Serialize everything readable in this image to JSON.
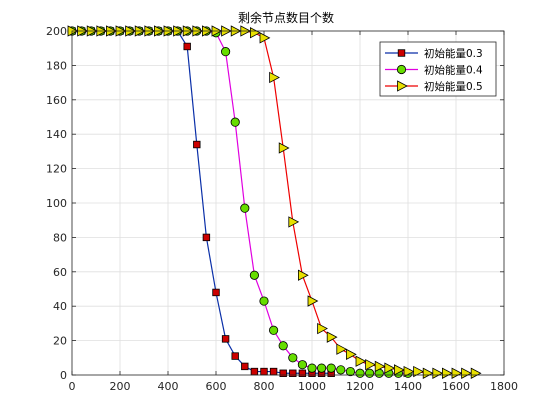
{
  "chart_data": {
    "type": "line",
    "title": "剩余节点数目个数",
    "xlabel": "",
    "ylabel": "",
    "xlim": [
      0,
      1800
    ],
    "ylim": [
      0,
      200
    ],
    "xticks": [
      0,
      200,
      400,
      600,
      800,
      1000,
      1200,
      1400,
      1600,
      1800
    ],
    "yticks": [
      0,
      20,
      40,
      60,
      80,
      100,
      120,
      140,
      160,
      180,
      200
    ],
    "grid": true,
    "legend_position": "top-right",
    "series": [
      {
        "name": "初始能量0.3",
        "color": "#0a2fa8",
        "marker": "square",
        "marker_color": "#cc0000",
        "x": [
          0,
          40,
          80,
          120,
          160,
          200,
          240,
          280,
          320,
          360,
          400,
          440,
          480,
          520,
          560,
          600,
          640,
          680,
          720,
          760,
          800,
          840,
          880,
          920,
          960,
          1000,
          1040,
          1080
        ],
        "y": [
          200,
          200,
          200,
          200,
          200,
          200,
          200,
          200,
          200,
          200,
          200,
          200,
          191,
          134,
          80,
          48,
          21,
          11,
          5,
          2,
          2,
          2,
          1,
          1,
          1,
          1,
          1,
          1
        ]
      },
      {
        "name": "初始能量0.4",
        "color": "#e000e0",
        "marker": "circle",
        "marker_color": "#66dd00",
        "x": [
          0,
          40,
          80,
          120,
          160,
          200,
          240,
          280,
          320,
          360,
          400,
          440,
          480,
          520,
          560,
          600,
          640,
          680,
          720,
          760,
          800,
          840,
          880,
          920,
          960,
          1000,
          1040,
          1080,
          1120,
          1160,
          1200,
          1240,
          1280,
          1320,
          1360,
          1400
        ],
        "y": [
          200,
          200,
          200,
          200,
          200,
          200,
          200,
          200,
          200,
          200,
          200,
          200,
          200,
          200,
          200,
          199,
          188,
          147,
          97,
          58,
          43,
          26,
          17,
          10,
          6,
          4,
          4,
          4,
          3,
          2,
          1,
          1,
          1,
          1,
          1,
          1
        ]
      },
      {
        "name": "初始能量0.5",
        "color": "#ee0000",
        "marker": "triangle-right",
        "marker_color": "#e8e000",
        "x": [
          0,
          40,
          80,
          120,
          160,
          200,
          240,
          280,
          320,
          360,
          400,
          440,
          480,
          520,
          560,
          600,
          640,
          680,
          720,
          760,
          800,
          840,
          880,
          920,
          960,
          1000,
          1040,
          1080,
          1120,
          1160,
          1200,
          1240,
          1280,
          1320,
          1360,
          1400,
          1440,
          1480,
          1520,
          1560,
          1600,
          1640,
          1680
        ],
        "y": [
          200,
          200,
          200,
          200,
          200,
          200,
          200,
          200,
          200,
          200,
          200,
          200,
          200,
          200,
          200,
          200,
          200,
          200,
          200,
          199,
          196,
          173,
          132,
          89,
          58,
          43,
          27,
          22,
          15,
          12,
          8,
          6,
          5,
          4,
          3,
          2,
          2,
          1,
          1,
          1,
          1,
          1,
          1
        ]
      }
    ]
  }
}
